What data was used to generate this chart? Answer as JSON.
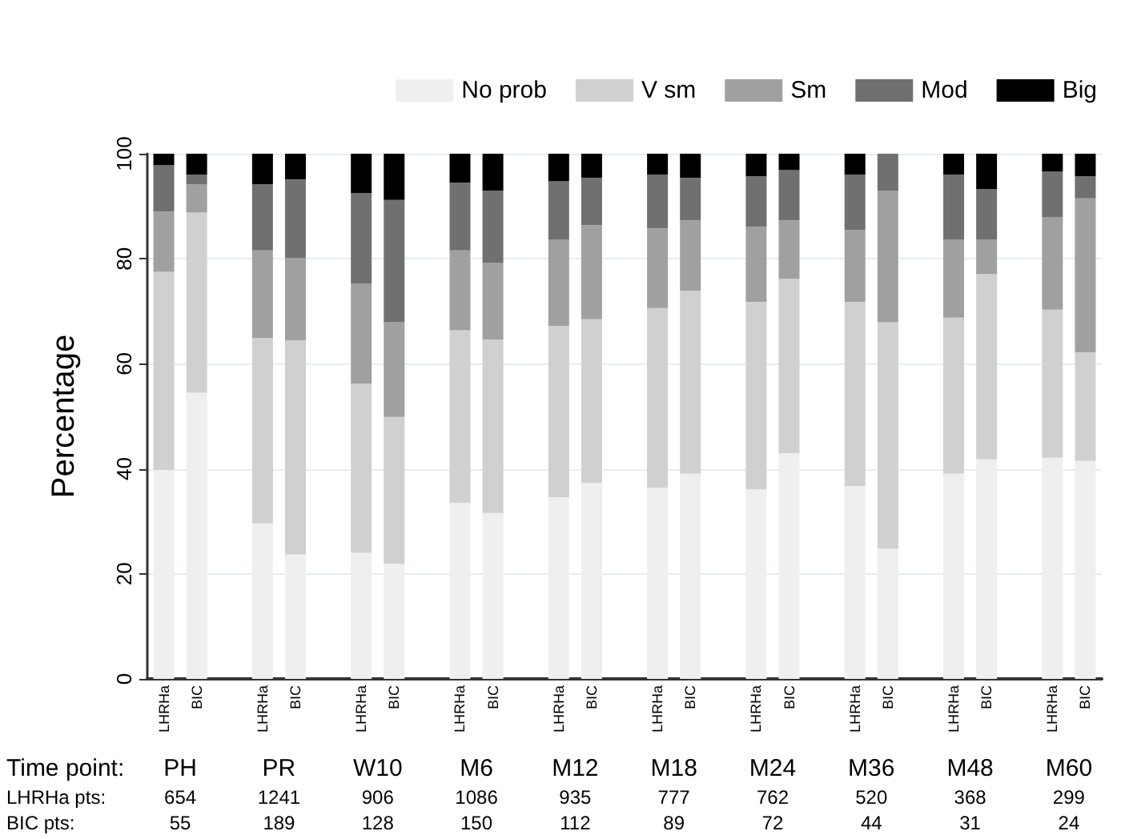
{
  "chart_data": {
    "type": "bar",
    "stacked": true,
    "ylabel": "Percentage",
    "ylim": [
      0,
      100
    ],
    "yticks": [
      0,
      20,
      40,
      60,
      80,
      100
    ],
    "grid": "y",
    "legend": "top right",
    "categories": [
      "LHRHa",
      "BIC",
      "LHRHa",
      "BIC",
      "LHRHa",
      "BIC",
      "LHRHa",
      "BIC",
      "LHRHa",
      "BIC",
      "LHRHa",
      "BIC",
      "LHRHa",
      "BIC",
      "LHRHa",
      "BIC",
      "LHRHa",
      "BIC",
      "LHRHa",
      "BIC"
    ],
    "series": [
      {
        "name": "No prob",
        "color": "#efefef",
        "values": [
          39.8,
          54.5,
          29.6,
          23.7,
          24.0,
          21.9,
          33.5,
          31.6,
          34.6,
          37.3,
          36.4,
          39.1,
          36.1,
          43.0,
          36.7,
          24.8,
          39.1,
          41.8,
          42.1,
          41.5
        ]
      },
      {
        "name": "V sm",
        "color": "#d0d0d0",
        "values": [
          37.7,
          34.3,
          35.3,
          40.8,
          32.2,
          28.0,
          32.9,
          33.0,
          32.6,
          31.2,
          34.2,
          34.8,
          35.7,
          33.2,
          35.1,
          43.1,
          29.7,
          35.3,
          28.2,
          20.7
        ]
      },
      {
        "name": "Sm",
        "color": "#a0a0a0",
        "values": [
          11.5,
          5.4,
          16.7,
          15.6,
          19.1,
          18.0,
          15.2,
          14.6,
          16.5,
          17.9,
          15.2,
          13.4,
          14.3,
          11.1,
          13.7,
          25.1,
          14.9,
          6.6,
          17.6,
          29.3
        ]
      },
      {
        "name": "Mod",
        "color": "#707070",
        "values": [
          8.8,
          1.8,
          12.6,
          15.0,
          17.2,
          23.3,
          12.9,
          13.8,
          11.1,
          9.0,
          10.2,
          8.1,
          9.6,
          9.6,
          10.5,
          7.0,
          12.3,
          9.6,
          8.7,
          4.2
        ]
      },
      {
        "name": "Big",
        "color": "#000000",
        "values": [
          2.2,
          4.0,
          5.8,
          4.9,
          7.5,
          8.8,
          5.5,
          7.0,
          5.2,
          4.6,
          4.0,
          4.6,
          4.3,
          3.1,
          4.0,
          0,
          4.0,
          6.7,
          3.4,
          4.3
        ]
      }
    ],
    "annotations": [
      "Time point:",
      "PH",
      "PR",
      "W10",
      "M6",
      "M12",
      "M18",
      "M24",
      "M36",
      "M48",
      "M60",
      "LHRHa pts:",
      "654",
      "1241",
      "906",
      "1086",
      "935",
      "777",
      "762",
      "520",
      "368",
      "299",
      "BIC pts:",
      "55",
      "189",
      "128",
      "150",
      "112",
      "89",
      "72",
      "44",
      "31",
      "24"
    ]
  }
}
